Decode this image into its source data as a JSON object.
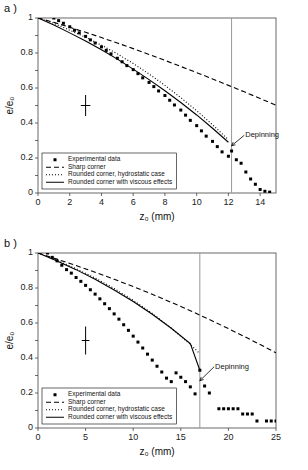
{
  "chart_data": [
    {
      "type": "line",
      "title": "a )",
      "xlabel": "z₀ (mm)",
      "ylabel": "e/e₀",
      "xlim": [
        0,
        15
      ],
      "ylim": [
        0,
        1
      ],
      "xticks": [
        0,
        2,
        4,
        6,
        8,
        10,
        12,
        14
      ],
      "yticks": [
        0,
        {
          "value": 0.1,
          "label": null
        },
        0.2,
        {
          "value": 0.3,
          "label": null
        },
        0.4,
        {
          "value": 0.5,
          "label": null
        },
        0.6,
        {
          "value": 0.7,
          "label": null
        },
        0.8,
        {
          "value": 0.9,
          "label": null
        },
        1
      ],
      "grid": false,
      "legend": "lower left",
      "series": [
        {
          "name": "Experimental data",
          "color": "#000000",
          "marker": "square",
          "line_style": "none",
          "x": [
            1.0,
            1.3,
            1.6,
            2.0,
            2.3,
            2.6,
            3.0,
            3.3,
            3.6,
            4.0,
            4.3,
            4.6,
            5.0,
            5.3,
            5.6,
            6.0,
            6.3,
            6.6,
            7.0,
            7.3,
            7.6,
            8.0,
            8.3,
            8.6,
            9.0,
            9.3,
            9.6,
            10.0,
            10.3,
            10.6,
            11.0,
            11.3,
            11.6,
            12.0,
            12.2,
            12.5,
            12.8,
            13.1,
            13.4,
            13.7,
            14.0,
            14.3,
            14.6
          ],
          "values": [
            1.0,
            0.985,
            0.97,
            0.95,
            0.93,
            0.915,
            0.895,
            0.875,
            0.857,
            0.835,
            0.815,
            0.795,
            0.77,
            0.75,
            0.728,
            0.705,
            0.682,
            0.658,
            0.632,
            0.608,
            0.583,
            0.557,
            0.53,
            0.503,
            0.474,
            0.445,
            0.415,
            0.385,
            0.355,
            0.325,
            0.295,
            0.265,
            0.235,
            0.21,
            0.24,
            0.19,
            0.17,
            0.12,
            0.08,
            0.05,
            0.02,
            0.01,
            0.005
          ]
        },
        {
          "name": "Sharp corner",
          "color": "#000000",
          "line_style": "dashed",
          "x": [
            0,
            1,
            2,
            3,
            4,
            5,
            6,
            7,
            8,
            9,
            10,
            11,
            12,
            13,
            14,
            15
          ],
          "values": [
            1.0,
            0.975,
            0.947,
            0.918,
            0.888,
            0.857,
            0.825,
            0.792,
            0.758,
            0.723,
            0.688,
            0.652,
            0.615,
            0.578,
            0.54,
            0.502
          ]
        },
        {
          "name": "Rounded corner, hydrostatic case",
          "color": "#000000",
          "line_style": "dotted",
          "x": [
            0,
            1,
            2,
            3,
            4,
            5,
            6,
            7,
            8,
            9,
            10,
            11,
            12
          ],
          "values": [
            1.0,
            0.97,
            0.93,
            0.89,
            0.845,
            0.795,
            0.74,
            0.68,
            0.615,
            0.545,
            0.47,
            0.39,
            0.305
          ]
        },
        {
          "name": "Rounded corner with viscous effects",
          "color": "#000000",
          "line_style": "solid",
          "x": [
            0,
            1,
            2,
            3,
            4,
            5,
            6,
            7,
            8,
            9,
            10,
            11,
            12
          ],
          "values": [
            1.0,
            0.96,
            0.915,
            0.868,
            0.818,
            0.765,
            0.708,
            0.648,
            0.584,
            0.517,
            0.446,
            0.37,
            0.29
          ]
        }
      ],
      "error_bar": {
        "x": 3.0,
        "y": 0.5,
        "xerr": 0.3,
        "yerr": 0.06
      },
      "vline": 12.2,
      "annotations": [
        {
          "text": "Depinning",
          "x": 12.2,
          "y": 0.27,
          "text_x": 13.0,
          "text_y": 0.33
        }
      ]
    },
    {
      "type": "line",
      "title": "b )",
      "xlabel": "z₀ (mm)",
      "ylabel": "e/e₀",
      "xlim": [
        0,
        25
      ],
      "ylim": [
        0,
        1
      ],
      "xticks": [
        0,
        5,
        10,
        15,
        20,
        25
      ],
      "yticks": [
        0,
        {
          "value": 0.1,
          "label": null
        },
        0.2,
        {
          "value": 0.3,
          "label": null
        },
        0.4,
        {
          "value": 0.5,
          "label": null
        },
        0.6,
        {
          "value": 0.7,
          "label": null
        },
        0.8,
        {
          "value": 0.9,
          "label": null
        },
        1
      ],
      "grid": false,
      "legend": "lower left",
      "series": [
        {
          "name": "Experimental data",
          "color": "#000000",
          "marker": "square",
          "line_style": "none",
          "x": [
            1.0,
            1.5,
            2.0,
            2.5,
            3.0,
            3.5,
            4.0,
            4.5,
            5.0,
            5.5,
            6.0,
            6.5,
            7.0,
            7.5,
            8.0,
            8.5,
            9.0,
            9.5,
            10.0,
            10.5,
            11.0,
            11.5,
            12.0,
            12.5,
            13.0,
            13.5,
            14.0,
            14.5,
            15.0,
            15.5,
            16.0,
            16.5,
            17.0,
            17.5,
            18.0,
            19.0,
            19.5,
            20.0,
            20.5,
            21.0,
            21.5,
            22.0,
            22.5,
            23.0,
            24.0,
            24.5,
            25.0
          ],
          "values": [
            1.0,
            0.975,
            0.955,
            0.93,
            0.905,
            0.885,
            0.86,
            0.838,
            0.815,
            0.79,
            0.765,
            0.738,
            0.71,
            0.682,
            0.652,
            0.622,
            0.59,
            0.558,
            0.525,
            0.491,
            0.457,
            0.422,
            0.388,
            0.353,
            0.32,
            0.285,
            0.265,
            0.315,
            0.29,
            0.265,
            0.235,
            0.195,
            0.33,
            0.24,
            0.2,
            0.11,
            0.11,
            0.11,
            0.11,
            0.11,
            0.08,
            0.08,
            0.08,
            0.04,
            0.04,
            0.04,
            0.04
          ]
        },
        {
          "name": "Sharp corner",
          "color": "#000000",
          "line_style": "dashed",
          "x": [
            0,
            2,
            4,
            6,
            8,
            10,
            12,
            14,
            16,
            18,
            20,
            22,
            24,
            25
          ],
          "values": [
            1.0,
            0.965,
            0.928,
            0.89,
            0.85,
            0.808,
            0.764,
            0.718,
            0.67,
            0.62,
            0.568,
            0.514,
            0.458,
            0.43
          ]
        },
        {
          "name": "Rounded corner, hydrostatic case",
          "color": "#000000",
          "line_style": "dotted",
          "x": [
            0,
            2,
            4,
            6,
            8,
            10,
            12,
            14,
            16,
            17
          ],
          "values": [
            1.0,
            0.958,
            0.91,
            0.857,
            0.797,
            0.73,
            0.655,
            0.571,
            0.477,
            0.425
          ]
        },
        {
          "name": "Rounded corner with viscous effects",
          "color": "#000000",
          "line_style": "solid",
          "x": [
            0,
            2,
            4,
            6,
            8,
            10,
            12,
            14,
            16,
            17
          ],
          "values": [
            1.0,
            0.955,
            0.905,
            0.85,
            0.789,
            0.723,
            0.65,
            0.57,
            0.482,
            0.33
          ]
        }
      ],
      "error_bar": {
        "x": 5.0,
        "y": 0.5,
        "xerr": 0.4,
        "yerr": 0.08
      },
      "vline": 17.0,
      "annotations": [
        {
          "text": "Depinning",
          "x": 17.0,
          "y": 0.27,
          "text_x": 18.5,
          "text_y": 0.35
        }
      ]
    }
  ]
}
